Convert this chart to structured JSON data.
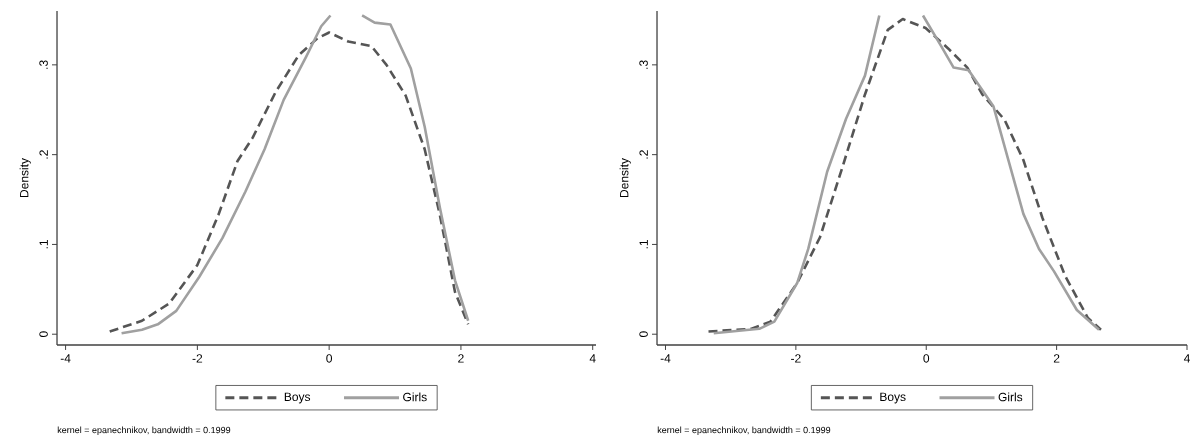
{
  "chart_data": [
    {
      "type": "line",
      "ylabel": "Density",
      "xlim": [
        -4.13,
        4.05
      ],
      "ylim": [
        -0.012,
        0.36
      ],
      "xticks": [
        -4,
        -2,
        0,
        2,
        4
      ],
      "yticks": [
        {
          "value": 0,
          "label": "0"
        },
        {
          "value": 0.1,
          "label": ".1"
        },
        {
          "value": 0.2,
          "label": ".2"
        },
        {
          "value": 0.3,
          "label": ".3"
        }
      ],
      "legend": "bottom",
      "annotations": [
        "kernel = epanechnikov, bandwidth = 0.1999"
      ],
      "series": [
        {
          "name": "Boys",
          "color": "#555555",
          "line_style": "dashed",
          "x": [
            -3.33,
            -2.84,
            -2.43,
            -2.0,
            -1.68,
            -1.39,
            -1.16,
            -0.81,
            -0.46,
            -0.17,
            0,
            0.29,
            0.64,
            0.87,
            1.16,
            1.45,
            1.68,
            1.91,
            2.11
          ],
          "values": [
            0.003,
            0.015,
            0.034,
            0.077,
            0.133,
            0.193,
            0.219,
            0.27,
            0.311,
            0.33,
            0.336,
            0.326,
            0.321,
            0.3,
            0.266,
            0.206,
            0.133,
            0.047,
            0.011
          ]
        },
        {
          "name": "Girls",
          "color": "#a0a0a0",
          "line_style": "solid",
          "x": [
            -3.15,
            -2.84,
            -2.6,
            -2.32,
            -1.97,
            -1.62,
            -1.27,
            -0.98,
            -0.69,
            -0.35,
            -0.12,
            0.02,
            0.26,
            0.5,
            0.69,
            0.93,
            1.24,
            1.45,
            1.68,
            1.91,
            2.11
          ],
          "values": [
            0.001,
            0.005,
            0.011,
            0.026,
            0.064,
            0.107,
            0.159,
            0.206,
            0.261,
            0.309,
            0.343,
            0.355,
            null,
            0.355,
            0.347,
            0.345,
            0.296,
            0.231,
            0.141,
            0.06,
            0.015
          ]
        }
      ]
    },
    {
      "type": "line",
      "ylabel": "Density",
      "xlim": [
        -4.13,
        4.0
      ],
      "ylim": [
        -0.012,
        0.36
      ],
      "xticks": [
        -4,
        -2,
        0,
        2,
        4
      ],
      "yticks": [
        {
          "value": 0,
          "label": "0"
        },
        {
          "value": 0.1,
          "label": ".1"
        },
        {
          "value": 0.2,
          "label": ".2"
        },
        {
          "value": 0.3,
          "label": ".3"
        }
      ],
      "legend": "bottom",
      "annotations": [
        "kernel = epanechnikov, bandwidth = 0.1999"
      ],
      "series": [
        {
          "name": "Boys",
          "color": "#555555",
          "line_style": "dashed",
          "x": [
            -3.34,
            -2.68,
            -2.39,
            -1.98,
            -1.63,
            -1.29,
            -0.94,
            -0.59,
            -0.36,
            -0.01,
            0.34,
            0.63,
            0.86,
            1.2,
            1.49,
            1.78,
            2.13,
            2.48,
            2.68
          ],
          "values": [
            0.003,
            0.006,
            0.014,
            0.057,
            0.108,
            0.185,
            0.267,
            0.339,
            0.351,
            0.341,
            0.318,
            0.297,
            0.267,
            0.239,
            0.194,
            0.13,
            0.065,
            0.018,
            0.005
          ]
        },
        {
          "name": "Girls",
          "color": "#a0a0a0",
          "line_style": "solid",
          "x": [
            -3.26,
            -2.56,
            -2.33,
            -1.98,
            -1.81,
            -1.52,
            -1.23,
            -0.94,
            -0.72,
            -0.4,
            -0.05,
            0.22,
            0.42,
            0.65,
            1.03,
            1.26,
            1.49,
            1.73,
            1.96,
            2.31,
            2.65
          ],
          "values": [
            0.001,
            0.006,
            0.014,
            0.057,
            0.095,
            0.181,
            0.24,
            0.288,
            0.355,
            null,
            0.355,
            0.322,
            0.297,
            0.294,
            0.254,
            0.194,
            0.134,
            0.095,
            0.07,
            0.027,
            0.005
          ]
        }
      ]
    }
  ]
}
